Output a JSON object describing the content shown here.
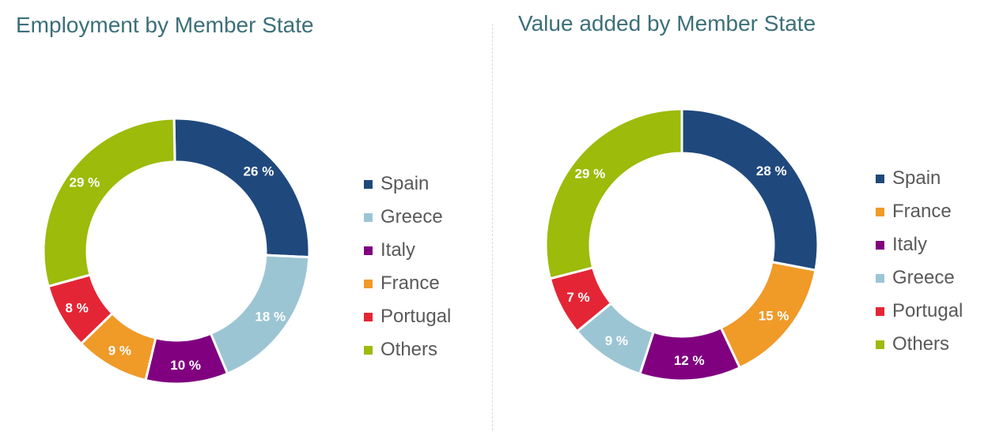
{
  "colors": {
    "title": "#3c6f79",
    "legend_text": "#595959",
    "label_text": "#ffffff",
    "Spain": "#1f497d",
    "Greece": "#9cc5d4",
    "Italy": "#800080",
    "France": "#f09a28",
    "Portugal": "#e42535",
    "Others": "#9cbb0a"
  },
  "chart_data": [
    {
      "type": "pie",
      "style": "donut",
      "title": "Employment by Member State",
      "legend_position": "right",
      "labels": [
        "Spain",
        "Greece",
        "Italy",
        "France",
        "Portugal",
        "Others"
      ],
      "values": [
        26,
        18,
        10,
        9,
        8,
        29
      ],
      "value_labels": [
        "26 %",
        "18 %",
        "10 %",
        "9 %",
        "8 %",
        "29 %"
      ]
    },
    {
      "type": "pie",
      "style": "donut",
      "title": "Value added by Member State",
      "legend_position": "right",
      "labels": [
        "Spain",
        "France",
        "Italy",
        "Greece",
        "Portugal",
        "Others"
      ],
      "values": [
        28,
        15,
        12,
        9,
        7,
        29
      ],
      "value_labels": [
        "28 %",
        "15 %",
        "12 %",
        "9 %",
        "7 %",
        "29 %"
      ]
    }
  ]
}
